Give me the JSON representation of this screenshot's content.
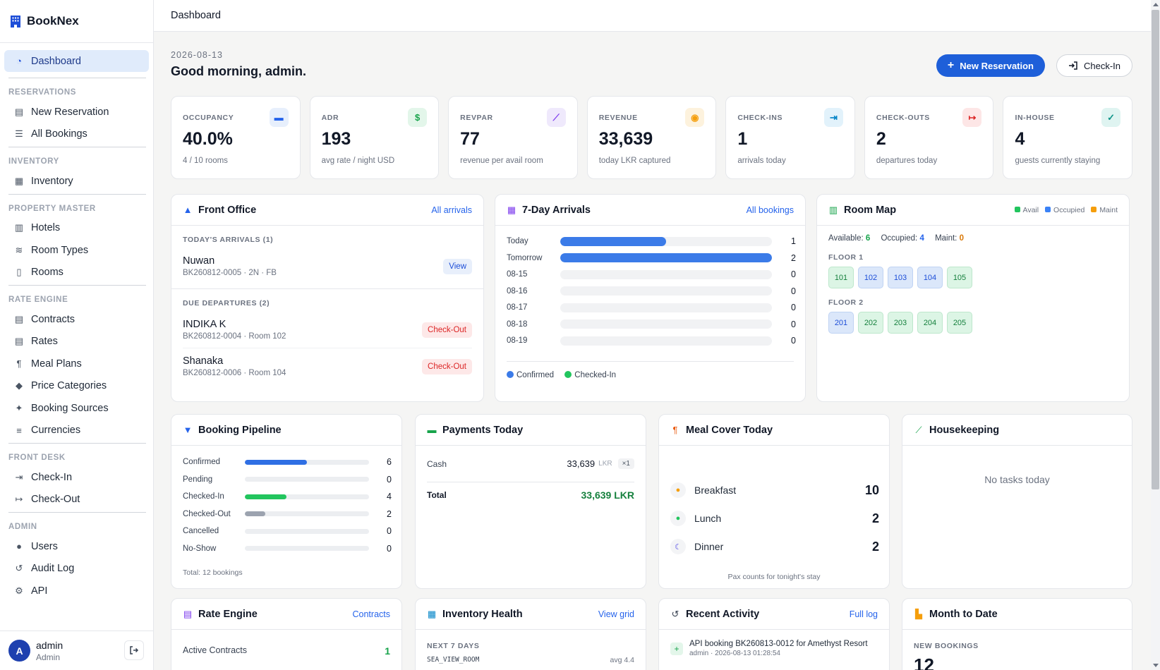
{
  "brand": {
    "name": "BookNex"
  },
  "sidebar": {
    "dashboard": "Dashboard",
    "sections": [
      {
        "title": "RESERVATIONS",
        "items": [
          "New Reservation",
          "All Bookings"
        ]
      },
      {
        "title": "INVENTORY",
        "items": [
          "Inventory"
        ]
      },
      {
        "title": "PROPERTY MASTER",
        "items": [
          "Hotels",
          "Room Types",
          "Rooms"
        ]
      },
      {
        "title": "RATE ENGINE",
        "items": [
          "Contracts",
          "Rates",
          "Meal Plans",
          "Price Categories",
          "Booking Sources",
          "Currencies"
        ]
      },
      {
        "title": "FRONT DESK",
        "items": [
          "Check-In",
          "Check-Out"
        ]
      },
      {
        "title": "ADMIN",
        "items": [
          "Users",
          "Audit Log",
          "API"
        ]
      }
    ],
    "user": {
      "initial": "A",
      "name": "admin",
      "role": "Admin"
    }
  },
  "topbar": {
    "title": "Dashboard"
  },
  "header": {
    "date": "2026-08-13",
    "greeting": "Good morning, admin.",
    "new_reservation": "New Reservation",
    "check_in": "Check-In"
  },
  "kpis": [
    {
      "label": "OCCUPANCY",
      "value": "40.0%",
      "sub": "4 / 10 rooms",
      "icon": "bed-icon",
      "color": "#2563eb",
      "bg": "#e7effc"
    },
    {
      "label": "ADR",
      "value": "193",
      "sub": "avg rate / night USD",
      "icon": "dollar-icon",
      "color": "#16a34a",
      "bg": "#e3f6ea"
    },
    {
      "label": "REVPAR",
      "value": "77",
      "sub": "revenue per avail room",
      "icon": "chart-line-icon",
      "color": "#7c3aed",
      "bg": "#efe9fc"
    },
    {
      "label": "REVENUE",
      "value": "33,639",
      "sub": "today LKR captured",
      "icon": "coins-icon",
      "color": "#f59e0b",
      "bg": "#fdf2dd"
    },
    {
      "label": "CHECK-INS",
      "value": "1",
      "sub": "arrivals today",
      "icon": "sign-in-icon",
      "color": "#0284c7",
      "bg": "#e2f2fb"
    },
    {
      "label": "CHECK-OUTS",
      "value": "2",
      "sub": "departures today",
      "icon": "sign-out-icon",
      "color": "#dc2626",
      "bg": "#fde6e6"
    },
    {
      "label": "IN-HOUSE",
      "value": "4",
      "sub": "guests currently staying",
      "icon": "user-check-icon",
      "color": "#0d9488",
      "bg": "#dff4f1"
    }
  ],
  "front_office": {
    "title": "Front Office",
    "link": "All arrivals",
    "arrivals_label": "TODAY'S ARRIVALS (1)",
    "arrivals": [
      {
        "name": "Nuwan",
        "sub": "BK260812-0005 · 2N · FB",
        "action": "View"
      }
    ],
    "departures_label": "DUE DEPARTURES (2)",
    "departures": [
      {
        "name": "INDIKA K",
        "sub": "BK260812-0004 · Room 102",
        "action": "Check-Out"
      },
      {
        "name": "Shanaka",
        "sub": "BK260812-0006 · Room 104",
        "action": "Check-Out"
      }
    ]
  },
  "arrivals7": {
    "title": "7-Day Arrivals",
    "link": "All bookings",
    "rows": [
      {
        "label": "Today",
        "value": 1
      },
      {
        "label": "Tomorrow",
        "value": 2
      },
      {
        "label": "08-15",
        "value": 0
      },
      {
        "label": "08-16",
        "value": 0
      },
      {
        "label": "08-17",
        "value": 0
      },
      {
        "label": "08-18",
        "value": 0
      },
      {
        "label": "08-19",
        "value": 0
      }
    ],
    "max": 2,
    "legend": [
      "Confirmed",
      "Checked-In"
    ]
  },
  "room_map": {
    "title": "Room Map",
    "legend": [
      "Avail",
      "Occupied",
      "Maint"
    ],
    "available_label": "Available:",
    "available": "6",
    "occupied_label": "Occupied:",
    "occupied": "4",
    "maint_label": "Maint:",
    "maint": "0",
    "floors": [
      {
        "label": "FLOOR 1",
        "rooms": [
          {
            "no": "101",
            "status": "avail"
          },
          {
            "no": "102",
            "status": "occ"
          },
          {
            "no": "103",
            "status": "occ"
          },
          {
            "no": "104",
            "status": "occ"
          },
          {
            "no": "105",
            "status": "avail"
          }
        ]
      },
      {
        "label": "FLOOR 2",
        "rooms": [
          {
            "no": "201",
            "status": "occ"
          },
          {
            "no": "202",
            "status": "avail"
          },
          {
            "no": "203",
            "status": "avail"
          },
          {
            "no": "204",
            "status": "avail"
          },
          {
            "no": "205",
            "status": "avail"
          }
        ]
      }
    ]
  },
  "pipeline": {
    "title": "Booking Pipeline",
    "rows": [
      {
        "label": "Confirmed",
        "value": 6,
        "color": "#2f6fe4"
      },
      {
        "label": "Pending",
        "value": 0,
        "color": "#f59e0b"
      },
      {
        "label": "Checked-In",
        "value": 4,
        "color": "#22c55e"
      },
      {
        "label": "Checked-Out",
        "value": 2,
        "color": "#9ca3af"
      },
      {
        "label": "Cancelled",
        "value": 0,
        "color": "#ef4444"
      },
      {
        "label": "No-Show",
        "value": 0,
        "color": "#6b7280"
      }
    ],
    "max": 12,
    "total": "Total: 12 bookings"
  },
  "payments": {
    "title": "Payments Today",
    "rows": [
      {
        "method": "Cash",
        "amount": "33,639",
        "currency": "LKR",
        "count": "×1"
      }
    ],
    "total_label": "Total",
    "total": "33,639 LKR"
  },
  "meals": {
    "title": "Meal Cover Today",
    "rows": [
      {
        "name": "Breakfast",
        "value": "10"
      },
      {
        "name": "Lunch",
        "value": "2"
      },
      {
        "name": "Dinner",
        "value": "2"
      }
    ],
    "note": "Pax counts for tonight's stay"
  },
  "housekeeping": {
    "title": "Housekeeping",
    "empty": "No tasks today"
  },
  "rate_engine": {
    "title": "Rate Engine",
    "link": "Contracts",
    "row_label": "Active Contracts",
    "row_value": "1"
  },
  "inventory_health": {
    "title": "Inventory Health",
    "link": "View grid",
    "section": "NEXT 7 DAYS",
    "row_label": "SEA_VIEW_ROOM",
    "row_value": "avg 4.4"
  },
  "recent": {
    "title": "Recent Activity",
    "link": "Full log",
    "items": [
      {
        "text": "API booking BK260813-0012 for Amethyst Resort",
        "meta": "admin · 2026-08-13 01:28:54"
      }
    ]
  },
  "mtd": {
    "title": "Month to Date",
    "section": "NEW BOOKINGS",
    "value": "12"
  },
  "colors": {
    "primary": "#1e5fd9",
    "green": "#15803d",
    "red": "#dc2626"
  }
}
